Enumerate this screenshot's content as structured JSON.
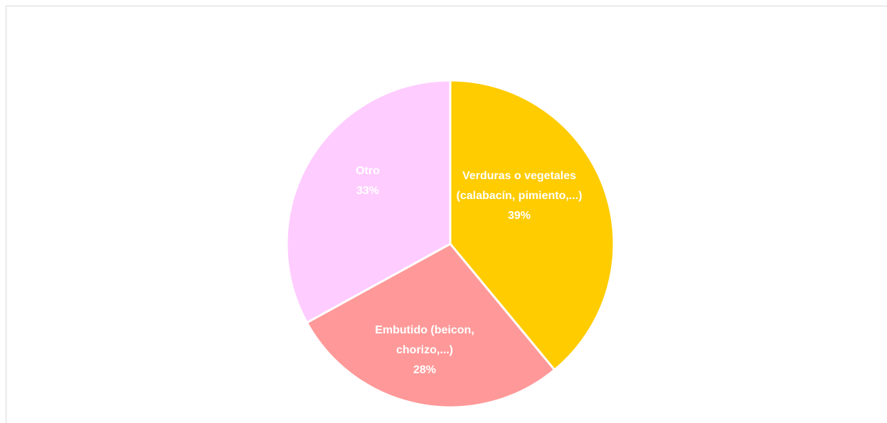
{
  "chart_data": {
    "type": "pie",
    "categories": [
      "Verduras o vegetales (calabacín, pimiento,...)",
      "Embutido (beicon, chorizo,...)",
      "Otro"
    ],
    "values": [
      39,
      28,
      33
    ],
    "value_labels": [
      "39%",
      "28%",
      "33%"
    ],
    "colors": [
      "#ffcc00",
      "#ff9999",
      "#ffccff"
    ]
  }
}
